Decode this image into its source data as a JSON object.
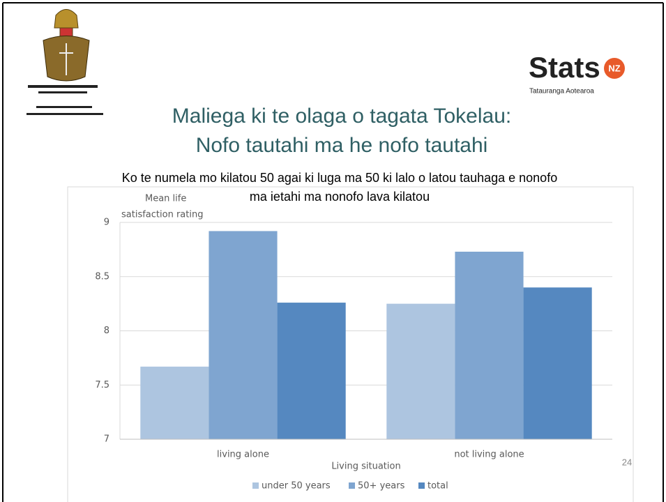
{
  "logo": {
    "name": "Stats",
    "badge": "NZ",
    "tagline": "Tatauranga Aotearoa"
  },
  "page_number": "24",
  "chart_data": {
    "type": "bar",
    "title": [
      "Maliega ki te olaga o tagata Tokelau:",
      "Nofo tautahi ma he nofo tautahi"
    ],
    "subtitle": [
      "Ko te numela mo kilatou 50 agai ki luga ma 50 ki lalo o latou tauhaga e nonofo",
      "ma ietahi ma nonofo lava kilatou"
    ],
    "y_label": [
      "Mean life",
      "satisfaction rating"
    ],
    "x_label": "Living situation",
    "categories": [
      "living alone",
      "not living alone"
    ],
    "series": [
      {
        "name": "under 50 years",
        "color": "#adc5e0",
        "values": [
          7.67,
          8.25
        ]
      },
      {
        "name": "50+ years",
        "color": "#7fa5d0",
        "values": [
          8.92,
          8.73
        ]
      },
      {
        "name": "total",
        "color": "#5588c0",
        "values": [
          8.26,
          8.4
        ]
      }
    ],
    "ylim": [
      7,
      9
    ],
    "yticks": [
      7,
      7.5,
      8,
      8.5,
      9
    ],
    "grid": true,
    "legend": "bottom"
  }
}
